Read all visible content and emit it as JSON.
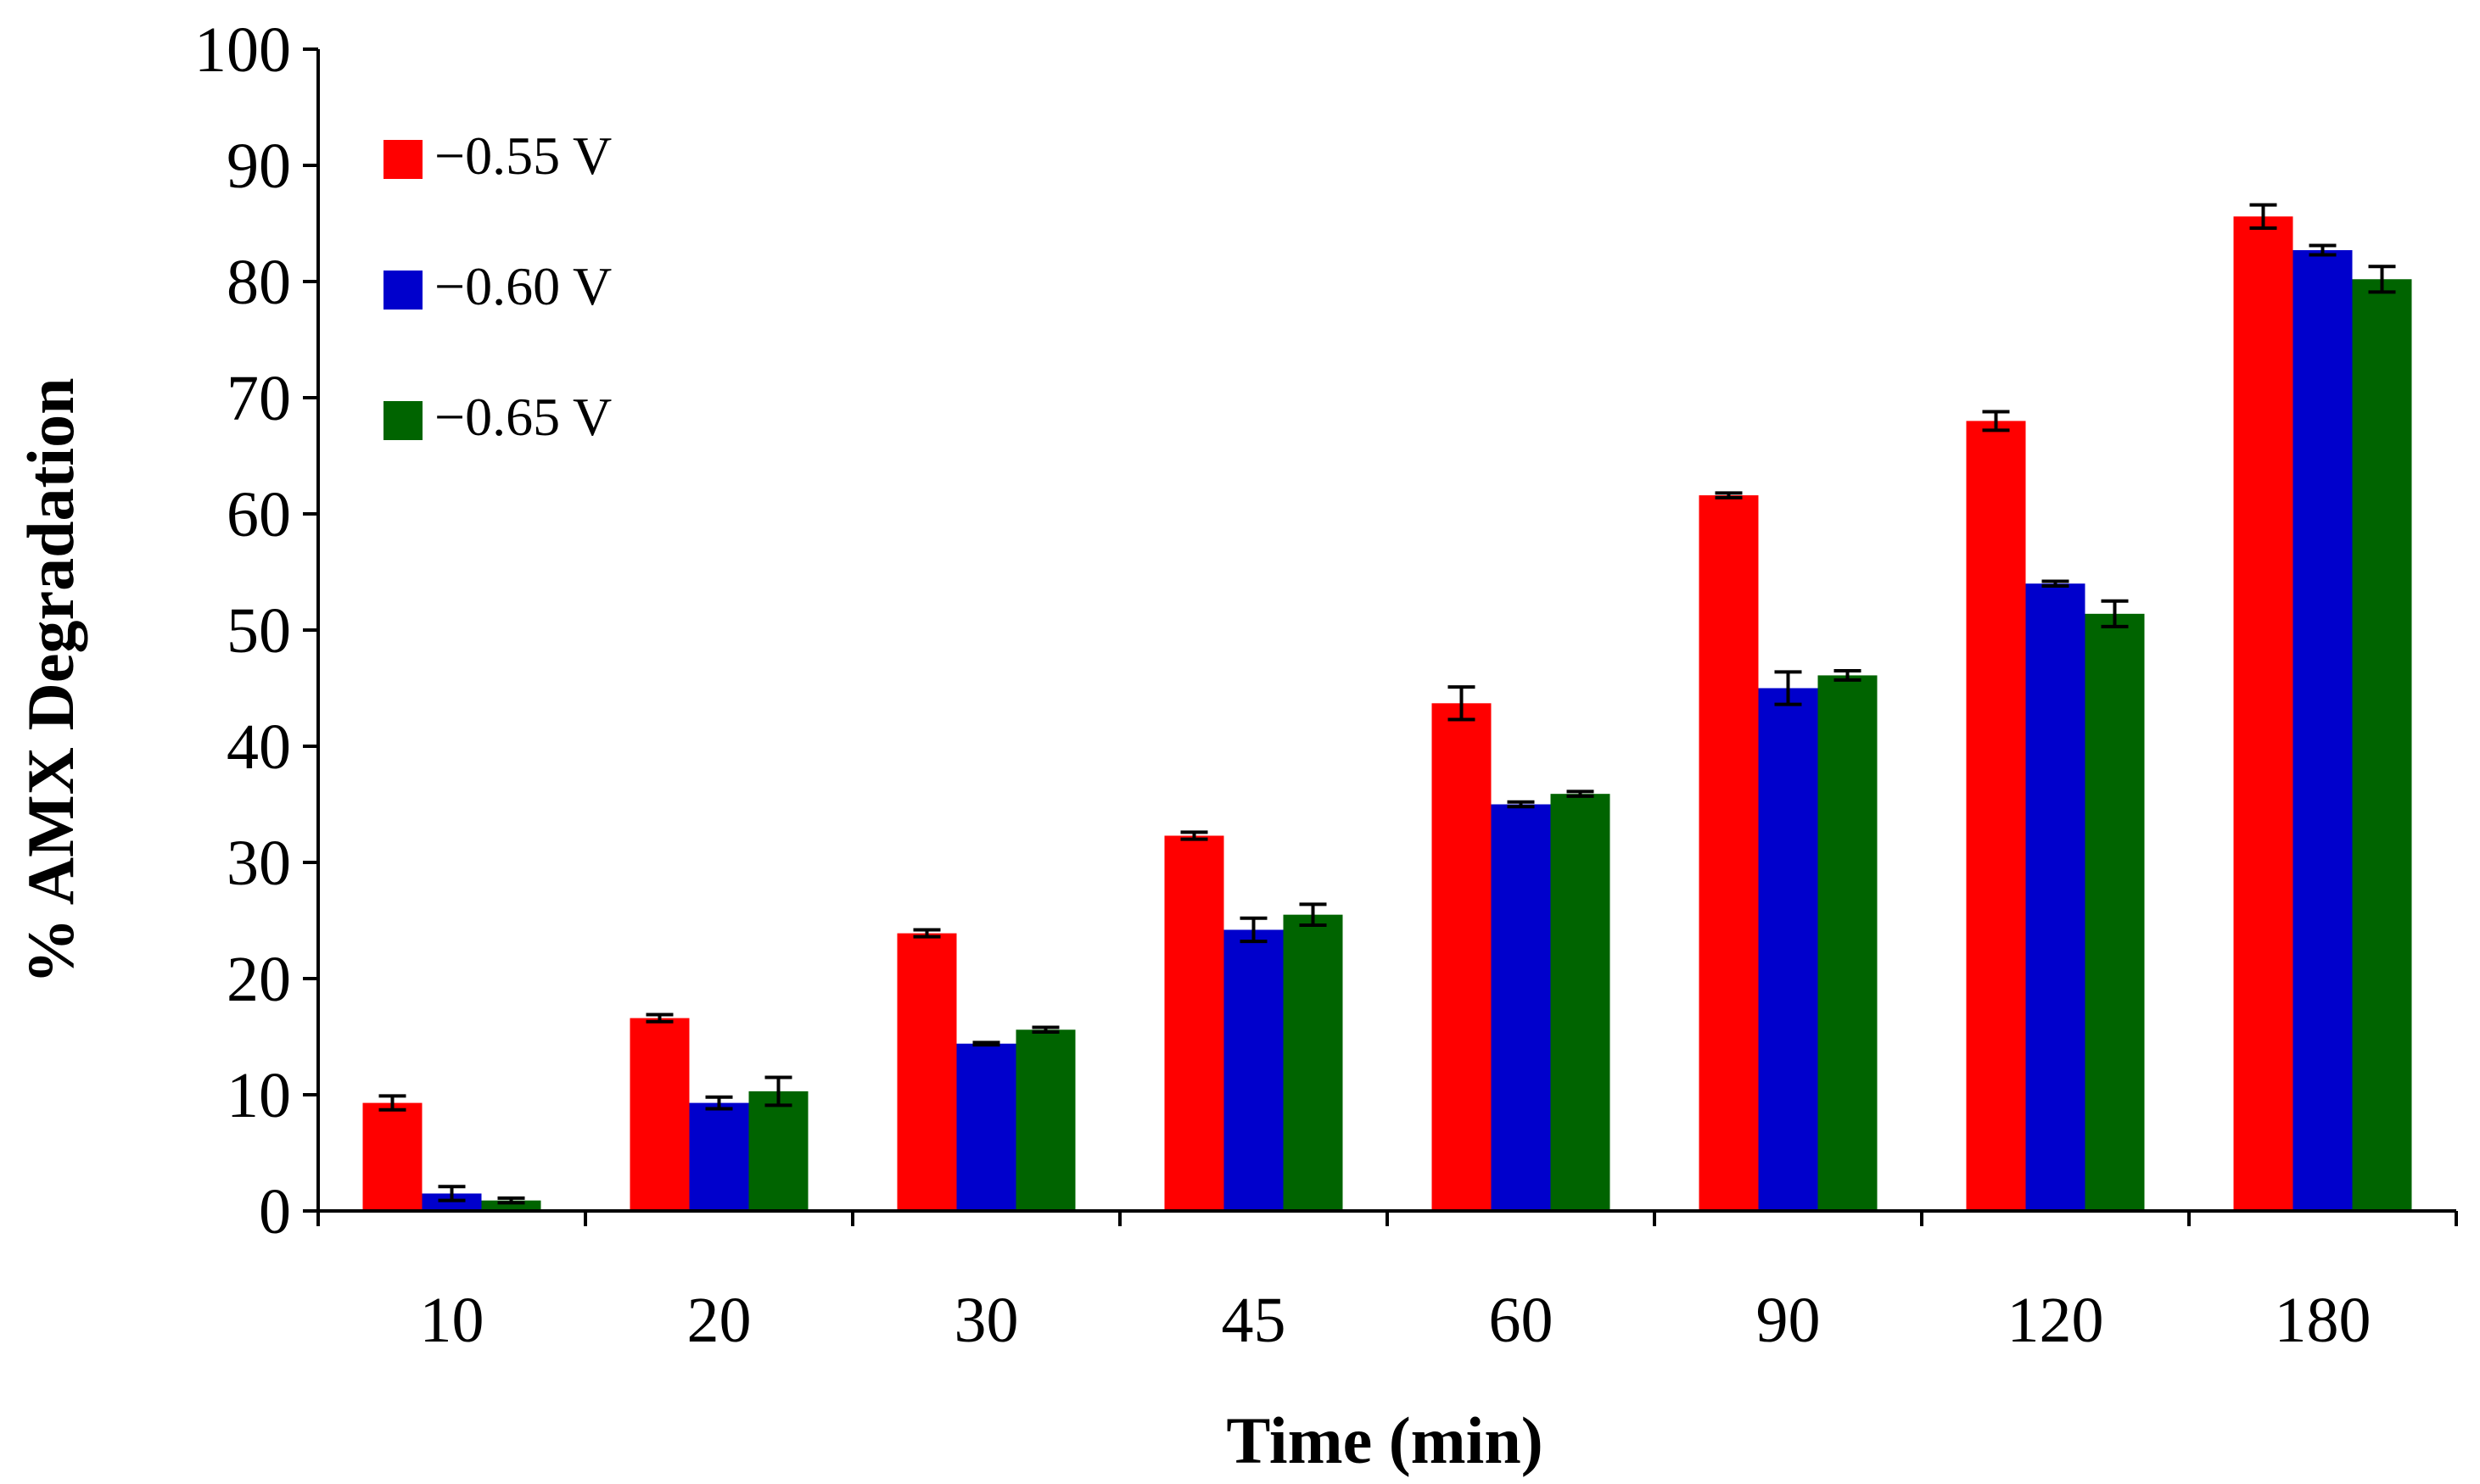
{
  "chart_data": {
    "type": "bar",
    "title": "",
    "xlabel": "Time (min)",
    "ylabel": "% AMX  Degradation",
    "ylim": [
      0,
      100
    ],
    "yticks": [
      0,
      10,
      20,
      30,
      40,
      50,
      60,
      70,
      80,
      90,
      100
    ],
    "grid": false,
    "legend_position": "top-left",
    "categories": [
      "10",
      "20",
      "30",
      "45",
      "60",
      "90",
      "120",
      "180"
    ],
    "series": [
      {
        "name": "−0.55 V",
        "color": "#ff0000",
        "values": [
          9.3,
          16.6,
          23.9,
          32.3,
          43.7,
          61.6,
          68.0,
          85.6
        ],
        "errors": [
          0.6,
          0.3,
          0.3,
          0.3,
          1.4,
          0.2,
          0.8,
          1.0
        ]
      },
      {
        "name": "−0.60 V",
        "color": "#0000cc",
        "values": [
          1.5,
          9.3,
          14.4,
          24.2,
          35.0,
          45.0,
          54.0,
          82.7
        ],
        "errors": [
          0.6,
          0.5,
          0.1,
          1.0,
          0.2,
          1.4,
          0.2,
          0.4
        ]
      },
      {
        "name": "−0.65 V",
        "color": "#006400",
        "values": [
          0.9,
          10.3,
          15.6,
          25.5,
          35.9,
          46.1,
          51.4,
          80.2
        ],
        "errors": [
          0.2,
          1.2,
          0.2,
          0.9,
          0.2,
          0.4,
          1.1,
          1.1
        ]
      }
    ]
  }
}
